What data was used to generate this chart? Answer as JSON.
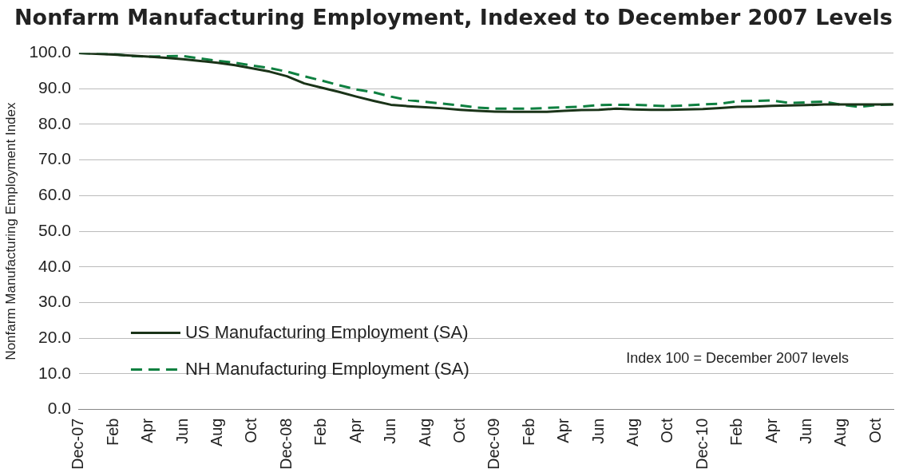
{
  "chart_data": {
    "type": "line",
    "title": "Nonfarm Manufacturing Employment, Indexed to December 2007 Levels",
    "ylabel": "Nonfarm Manufacturing Employment Index",
    "categories": [
      "Dec-07",
      null,
      "Feb",
      null,
      "Apr",
      null,
      "Jun",
      null,
      "Aug",
      null,
      "Oct",
      null,
      "Dec-08",
      null,
      "Feb",
      null,
      "Apr",
      null,
      "Jun",
      null,
      "Aug",
      null,
      "Oct",
      null,
      "Dec-09",
      null,
      "Feb",
      null,
      "Apr",
      null,
      "Jun",
      null,
      "Aug",
      null,
      "Oct",
      null,
      "Dec-10",
      null,
      "Feb",
      null,
      "Apr",
      null,
      "Jun",
      null,
      "Aug",
      null,
      "Oct",
      null
    ],
    "series": [
      {
        "name": "US Manufacturing Employment (SA)",
        "color": "#1a3318",
        "line_style": "solid",
        "values": [
          100,
          99.8,
          99.6,
          99.3,
          99.0,
          98.7,
          98.3,
          97.8,
          97.3,
          96.6,
          95.7,
          94.8,
          93.5,
          91.5,
          90.3,
          89.1,
          87.8,
          86.6,
          85.5,
          85.1,
          84.8,
          84.5,
          84.1,
          83.8,
          83.6,
          83.5,
          83.5,
          83.5,
          83.8,
          84.0,
          84.1,
          84.4,
          84.2,
          84.1,
          84.1,
          84.2,
          84.3,
          84.6,
          84.9,
          85.0,
          85.2,
          85.3,
          85.4,
          85.6,
          85.6,
          85.6,
          85.6,
          85.6
        ]
      },
      {
        "name": "NH Manufacturing Employment (SA)",
        "color": "#0e8040",
        "line_style": "dashed",
        "values": [
          100,
          99.9,
          99.7,
          99.2,
          99.0,
          99.1,
          99.2,
          98.5,
          97.8,
          97.3,
          96.5,
          95.8,
          94.8,
          93.5,
          92.3,
          91.0,
          89.8,
          89.0,
          87.8,
          86.8,
          86.3,
          85.8,
          85.3,
          84.7,
          84.4,
          84.4,
          84.4,
          84.6,
          84.8,
          85.0,
          85.4,
          85.5,
          85.5,
          85.3,
          85.1,
          85.3,
          85.6,
          85.8,
          86.5,
          86.6,
          86.7,
          86.0,
          86.2,
          86.4,
          85.5,
          84.9,
          85.4,
          85.6
        ]
      }
    ],
    "ylim": [
      0,
      100
    ],
    "yticks": [
      {
        "value": 0,
        "label": "0.0"
      },
      {
        "value": 10,
        "label": "10.0"
      },
      {
        "value": 20,
        "label": "20.0"
      },
      {
        "value": 30,
        "label": "30.0"
      },
      {
        "value": 40,
        "label": "40.0"
      },
      {
        "value": 50,
        "label": "50.0"
      },
      {
        "value": 60,
        "label": "60.0"
      },
      {
        "value": 70,
        "label": "70.0"
      },
      {
        "value": 80,
        "label": "80.0"
      },
      {
        "value": 90,
        "label": "90.0"
      },
      {
        "value": 100,
        "label": "100.0"
      }
    ],
    "grid": "y",
    "legend": "bottom left",
    "marker": "none",
    "annotations": [
      "Index 100 = December 2007 levels"
    ]
  }
}
